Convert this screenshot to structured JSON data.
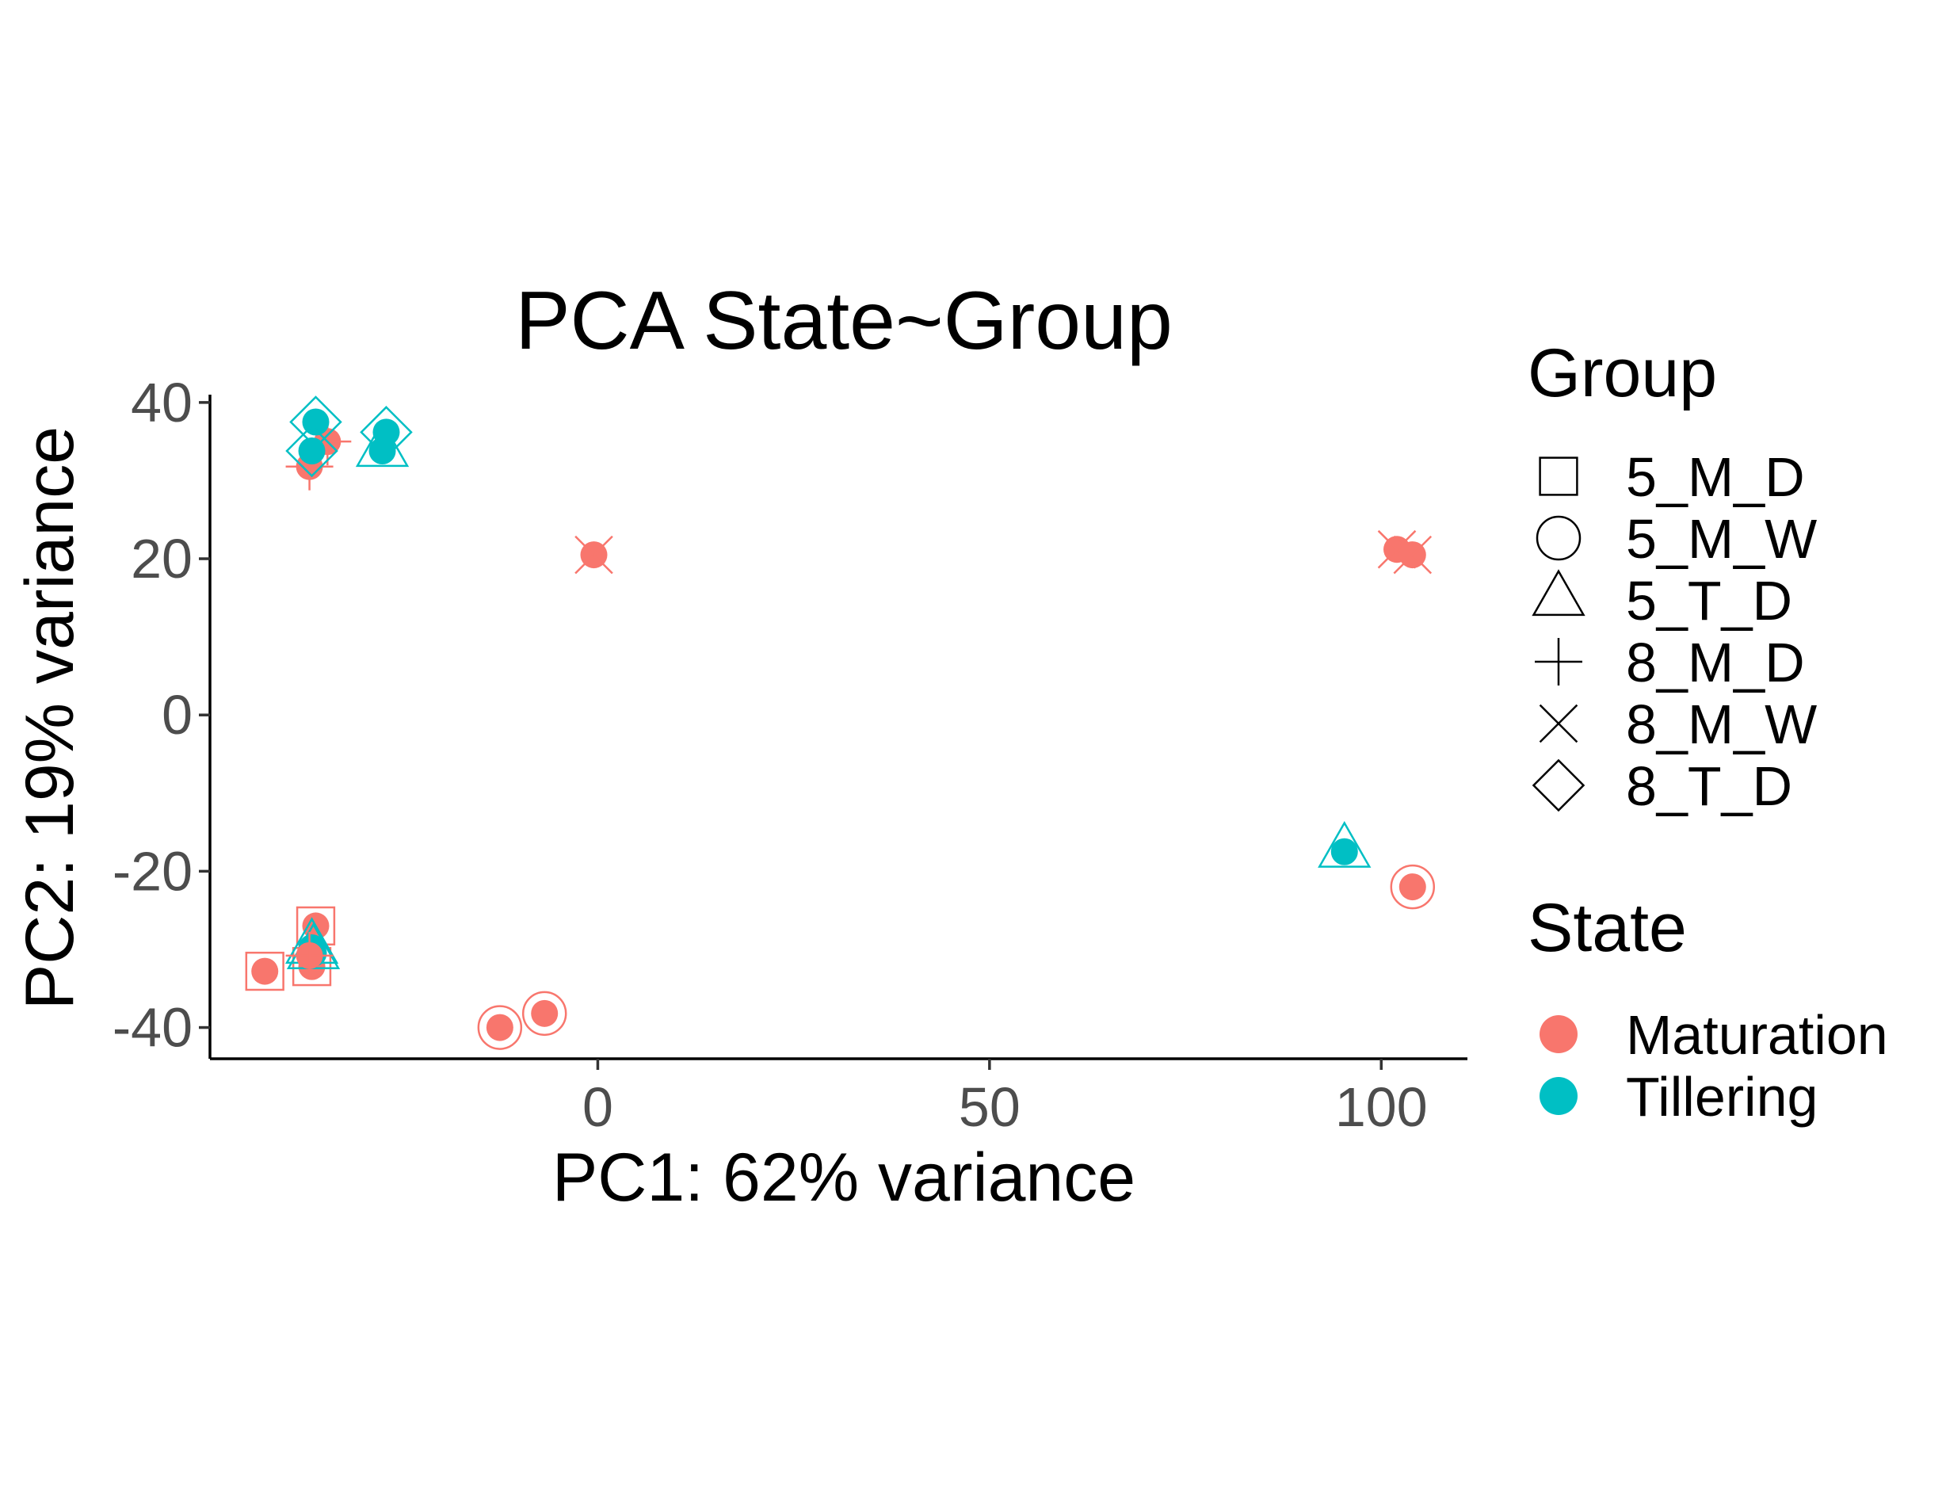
{
  "chart_data": {
    "type": "scatter",
    "title": "PCA State~Group",
    "xlabel": "PC1: 62% variance",
    "ylabel": "PC2: 19% variance",
    "xlim": [
      -49.5,
      111
    ],
    "ylim": [
      -44,
      41
    ],
    "xticks": [
      0,
      50,
      100
    ],
    "yticks": [
      40,
      20,
      0,
      -20,
      -40
    ],
    "grid": false,
    "legends": [
      {
        "title": "Group",
        "placement": "right",
        "entries": [
          {
            "label": "5_M_D",
            "shape": "square"
          },
          {
            "label": "5_M_W",
            "shape": "circle"
          },
          {
            "label": "5_T_D",
            "shape": "triangle"
          },
          {
            "label": "8_M_D",
            "shape": "plus"
          },
          {
            "label": "8_M_W",
            "shape": "cross"
          },
          {
            "label": "8_T_D",
            "shape": "diamond"
          }
        ]
      },
      {
        "title": "State",
        "placement": "right",
        "entries": [
          {
            "label": "Maturation",
            "color": "#F8766D"
          },
          {
            "label": "Tillering",
            "color": "#00BFC4"
          }
        ]
      }
    ],
    "points": [
      {
        "x": -42.5,
        "y": -32.8,
        "state": "Maturation",
        "group": "5_M_D"
      },
      {
        "x": -36.5,
        "y": -32.2,
        "state": "Maturation",
        "group": "5_M_D"
      },
      {
        "x": -36.0,
        "y": -27.0,
        "state": "Maturation",
        "group": "5_M_D"
      },
      {
        "x": -12.5,
        "y": -40.0,
        "state": "Maturation",
        "group": "5_M_W"
      },
      {
        "x": -6.8,
        "y": -38.2,
        "state": "Maturation",
        "group": "5_M_W"
      },
      {
        "x": 104.0,
        "y": -22.0,
        "state": "Maturation",
        "group": "5_M_W"
      },
      {
        "x": -36.5,
        "y": -29.8,
        "state": "Tillering",
        "group": "5_T_D"
      },
      {
        "x": -36.3,
        "y": -30.5,
        "state": "Tillering",
        "group": "5_T_D"
      },
      {
        "x": -27.5,
        "y": 33.8,
        "state": "Tillering",
        "group": "5_T_D"
      },
      {
        "x": 95.3,
        "y": -17.5,
        "state": "Tillering",
        "group": "5_T_D"
      },
      {
        "x": -36.8,
        "y": 31.8,
        "state": "Maturation",
        "group": "8_M_D"
      },
      {
        "x": -34.5,
        "y": 35.0,
        "state": "Maturation",
        "group": "8_M_D"
      },
      {
        "x": -36.8,
        "y": -30.8,
        "state": "Maturation",
        "group": "8_M_D"
      },
      {
        "x": -0.5,
        "y": 20.5,
        "state": "Maturation",
        "group": "8_M_W"
      },
      {
        "x": 102.0,
        "y": 21.2,
        "state": "Maturation",
        "group": "8_M_W"
      },
      {
        "x": 104.0,
        "y": 20.5,
        "state": "Maturation",
        "group": "8_M_W"
      },
      {
        "x": -36.0,
        "y": 37.5,
        "state": "Tillering",
        "group": "8_T_D"
      },
      {
        "x": -36.5,
        "y": 33.8,
        "state": "Tillering",
        "group": "8_T_D"
      },
      {
        "x": -27.0,
        "y": 36.2,
        "state": "Tillering",
        "group": "8_T_D"
      }
    ]
  }
}
